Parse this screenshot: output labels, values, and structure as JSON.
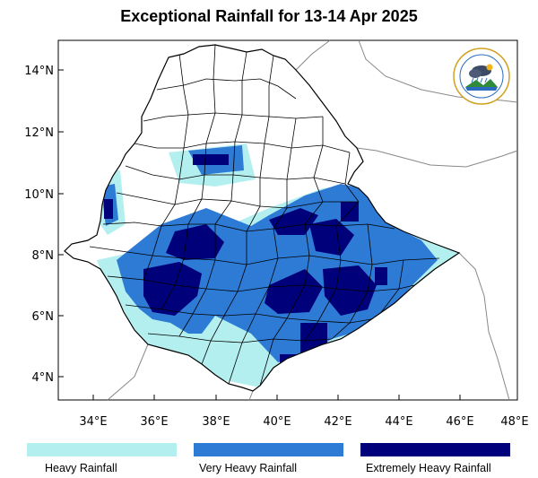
{
  "title": "Exceptional Rainfall for 13-14 Apr 2025",
  "axes": {
    "x_ticks": [
      "34°E",
      "36°E",
      "38°E",
      "40°E",
      "42°E",
      "44°E",
      "46°E",
      "48°E"
    ],
    "y_ticks": [
      "14°N",
      "12°N",
      "10°N",
      "8°N",
      "6°N",
      "4°N"
    ],
    "lon_range": [
      33,
      48
    ],
    "lat_range": [
      3.3,
      15
    ]
  },
  "legend": [
    {
      "label": "Heavy Rainfall",
      "color": "#b4eff0"
    },
    {
      "label": "Very Heavy Rainfall",
      "color": "#2e7bd6"
    },
    {
      "label": "Extremely Heavy Rainfall",
      "color": "#00007a"
    }
  ],
  "logo": {
    "icon": "ethiopian-meteorology-institute-logo"
  },
  "colors": {
    "boundary": "#000000",
    "neighbor_boundary": "#888888"
  }
}
